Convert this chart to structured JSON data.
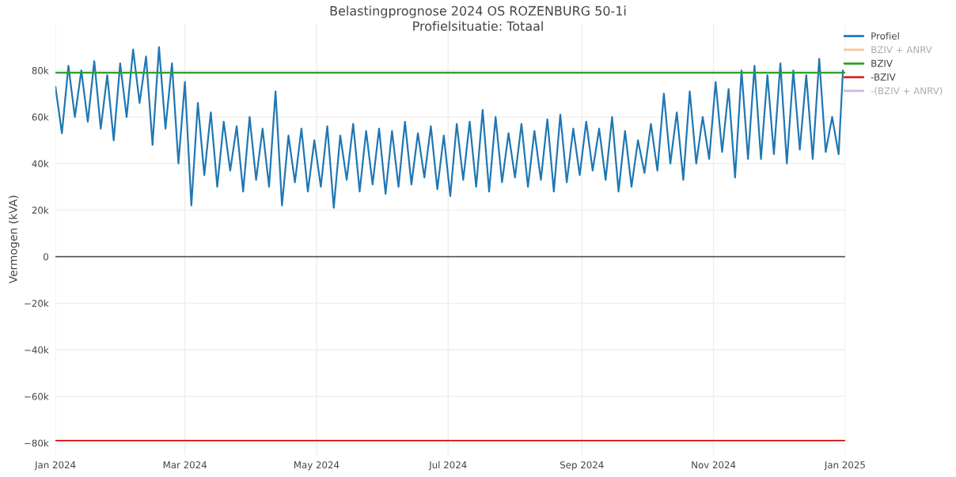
{
  "chart_data": {
    "type": "line",
    "title": "Belastingprognose 2024 OS ROZENBURG 50-1i",
    "subtitle": "Profielsituatie: Totaal",
    "ylabel": "Vermogen (kVA)",
    "x": [
      "2024-01-01",
      "2024-01-04",
      "2024-01-07",
      "2024-01-10",
      "2024-01-13",
      "2024-01-16",
      "2024-01-19",
      "2024-01-22",
      "2024-01-25",
      "2024-01-28",
      "2024-01-31",
      "2024-02-03",
      "2024-02-06",
      "2024-02-09",
      "2024-02-12",
      "2024-02-15",
      "2024-02-18",
      "2024-02-21",
      "2024-02-24",
      "2024-02-27",
      "2024-03-01",
      "2024-03-04",
      "2024-03-07",
      "2024-03-10",
      "2024-03-13",
      "2024-03-16",
      "2024-03-19",
      "2024-03-22",
      "2024-03-25",
      "2024-03-28",
      "2024-03-31",
      "2024-04-03",
      "2024-04-06",
      "2024-04-09",
      "2024-04-12",
      "2024-04-15",
      "2024-04-18",
      "2024-04-21",
      "2024-04-24",
      "2024-04-27",
      "2024-04-30",
      "2024-05-03",
      "2024-05-06",
      "2024-05-09",
      "2024-05-12",
      "2024-05-15",
      "2024-05-18",
      "2024-05-21",
      "2024-05-24",
      "2024-05-27",
      "2024-05-30",
      "2024-06-02",
      "2024-06-05",
      "2024-06-08",
      "2024-06-11",
      "2024-06-14",
      "2024-06-17",
      "2024-06-20",
      "2024-06-23",
      "2024-06-26",
      "2024-06-29",
      "2024-07-02",
      "2024-07-05",
      "2024-07-08",
      "2024-07-11",
      "2024-07-14",
      "2024-07-17",
      "2024-07-20",
      "2024-07-23",
      "2024-07-26",
      "2024-07-29",
      "2024-08-01",
      "2024-08-04",
      "2024-08-07",
      "2024-08-10",
      "2024-08-13",
      "2024-08-16",
      "2024-08-19",
      "2024-08-22",
      "2024-08-25",
      "2024-08-28",
      "2024-08-31",
      "2024-09-03",
      "2024-09-06",
      "2024-09-09",
      "2024-09-12",
      "2024-09-15",
      "2024-09-18",
      "2024-09-21",
      "2024-09-24",
      "2024-09-27",
      "2024-09-30",
      "2024-10-03",
      "2024-10-06",
      "2024-10-09",
      "2024-10-12",
      "2024-10-15",
      "2024-10-18",
      "2024-10-21",
      "2024-10-24",
      "2024-10-27",
      "2024-10-30",
      "2024-11-02",
      "2024-11-05",
      "2024-11-08",
      "2024-11-11",
      "2024-11-14",
      "2024-11-17",
      "2024-11-20",
      "2024-11-23",
      "2024-11-26",
      "2024-11-29",
      "2024-12-02",
      "2024-12-05",
      "2024-12-08",
      "2024-12-11",
      "2024-12-14",
      "2024-12-17",
      "2024-12-20",
      "2024-12-23",
      "2024-12-26",
      "2024-12-29",
      "2024-12-31"
    ],
    "series": [
      {
        "name": "Profiel",
        "color": "#1f77b4",
        "values": [
          73000,
          53000,
          82000,
          60000,
          80000,
          58000,
          84000,
          55000,
          78000,
          50000,
          83000,
          60000,
          89000,
          66000,
          86000,
          48000,
          90000,
          55000,
          83000,
          40000,
          75000,
          22000,
          66000,
          35000,
          62000,
          30000,
          58000,
          37000,
          56000,
          28000,
          60000,
          33000,
          55000,
          30000,
          71000,
          22000,
          52000,
          32000,
          55000,
          28000,
          50000,
          30000,
          56000,
          21000,
          52000,
          33000,
          57000,
          28000,
          54000,
          31000,
          55000,
          27000,
          54000,
          30000,
          58000,
          31000,
          53000,
          34000,
          56000,
          29000,
          52000,
          26000,
          57000,
          33000,
          58000,
          30000,
          63000,
          28000,
          60000,
          32000,
          53000,
          34000,
          57000,
          30000,
          54000,
          33000,
          59000,
          28000,
          61000,
          32000,
          55000,
          35000,
          58000,
          37000,
          55000,
          33000,
          60000,
          28000,
          54000,
          30000,
          50000,
          36000,
          57000,
          37000,
          70000,
          40000,
          62000,
          33000,
          71000,
          40000,
          60000,
          42000,
          75000,
          45000,
          72000,
          34000,
          80000,
          42000,
          82000,
          42000,
          78000,
          44000,
          83000,
          40000,
          80000,
          46000,
          78000,
          42000,
          85000,
          45000,
          60000,
          44000,
          80000
        ]
      },
      {
        "name": "BZIV + ANRV",
        "color": "#ff7f0e",
        "values": [
          null,
          null,
          null,
          null,
          null,
          null,
          null,
          null,
          null,
          null,
          null,
          null,
          null,
          null,
          null,
          null,
          null,
          null,
          null,
          null,
          null,
          null,
          null,
          null,
          null,
          null,
          null,
          null,
          null,
          null,
          null,
          null,
          null,
          null,
          null,
          null,
          null,
          null,
          null,
          null,
          null,
          null,
          null,
          null,
          null,
          null,
          null,
          null,
          null,
          null,
          null,
          null,
          null,
          null,
          null,
          null,
          null,
          null,
          null,
          null,
          null,
          null,
          null,
          null,
          null,
          null,
          null,
          null,
          null,
          null,
          null,
          null,
          null,
          null,
          null,
          null,
          null,
          null,
          null,
          null,
          null,
          null,
          null,
          null,
          null,
          null,
          null,
          null,
          null,
          null,
          null,
          null,
          null,
          null,
          null,
          null,
          null,
          null,
          null,
          null,
          null,
          null,
          null,
          null,
          null,
          null,
          null,
          null,
          null,
          null,
          null,
          null,
          null,
          null,
          null,
          null,
          null,
          null,
          null,
          null,
          null,
          null,
          null
        ]
      },
      {
        "name": "BZIV",
        "color": "#2ca02c",
        "x": [
          "2024-01-01",
          "2025-01-01"
        ],
        "values": [
          79000,
          79000
        ]
      },
      {
        "name": "-BZIV",
        "color": "#d62728",
        "x": [
          "2024-01-01",
          "2025-01-01"
        ],
        "values": [
          -79000,
          -79000
        ]
      },
      {
        "name": "-(BZIV + ANRV)",
        "color": "#9467bd",
        "values": [
          null,
          null,
          null,
          null,
          null,
          null,
          null,
          null,
          null,
          null,
          null,
          null,
          null,
          null,
          null,
          null,
          null,
          null,
          null,
          null,
          null,
          null,
          null,
          null,
          null,
          null,
          null,
          null,
          null,
          null,
          null,
          null,
          null,
          null,
          null,
          null,
          null,
          null,
          null,
          null,
          null,
          null,
          null,
          null,
          null,
          null,
          null,
          null,
          null,
          null,
          null,
          null,
          null,
          null,
          null,
          null,
          null,
          null,
          null,
          null,
          null,
          null,
          null,
          null,
          null,
          null,
          null,
          null,
          null,
          null,
          null,
          null,
          null,
          null,
          null,
          null,
          null,
          null,
          null,
          null,
          null,
          null,
          null,
          null,
          null,
          null,
          null,
          null,
          null,
          null,
          null,
          null,
          null,
          null,
          null,
          null,
          null,
          null,
          null,
          null,
          null,
          null,
          null,
          null,
          null,
          null,
          null,
          null,
          null,
          null,
          null,
          null,
          null,
          null,
          null,
          null,
          null,
          null,
          null,
          null,
          null,
          null,
          null
        ]
      }
    ],
    "ref_lines": [
      {
        "axis": "y",
        "value": 0,
        "color": "#444444"
      }
    ],
    "xlim": [
      "2024-01-01",
      "2025-01-01"
    ],
    "xticks": [
      {
        "value": "2024-01-01",
        "label": "Jan 2024"
      },
      {
        "value": "2024-03-01",
        "label": "Mar 2024"
      },
      {
        "value": "2024-05-01",
        "label": "May 2024"
      },
      {
        "value": "2024-07-01",
        "label": "Jul 2024"
      },
      {
        "value": "2024-09-01",
        "label": "Sep 2024"
      },
      {
        "value": "2024-11-01",
        "label": "Nov 2024"
      },
      {
        "value": "2025-01-01",
        "label": "Jan 2025"
      }
    ],
    "ylim": [
      -85000,
      100000
    ],
    "yticks": [
      {
        "value": -80000,
        "label": "−80k"
      },
      {
        "value": -60000,
        "label": "−60k"
      },
      {
        "value": -40000,
        "label": "−40k"
      },
      {
        "value": -20000,
        "label": "−20k"
      },
      0,
      {
        "value": 20000,
        "label": "20k"
      },
      {
        "value": 40000,
        "label": "40k"
      },
      {
        "value": 60000,
        "label": "60k"
      },
      {
        "value": 80000,
        "label": "80k"
      }
    ],
    "grid": true,
    "legend": "top right",
    "line_style": "solid",
    "marker": "none"
  }
}
